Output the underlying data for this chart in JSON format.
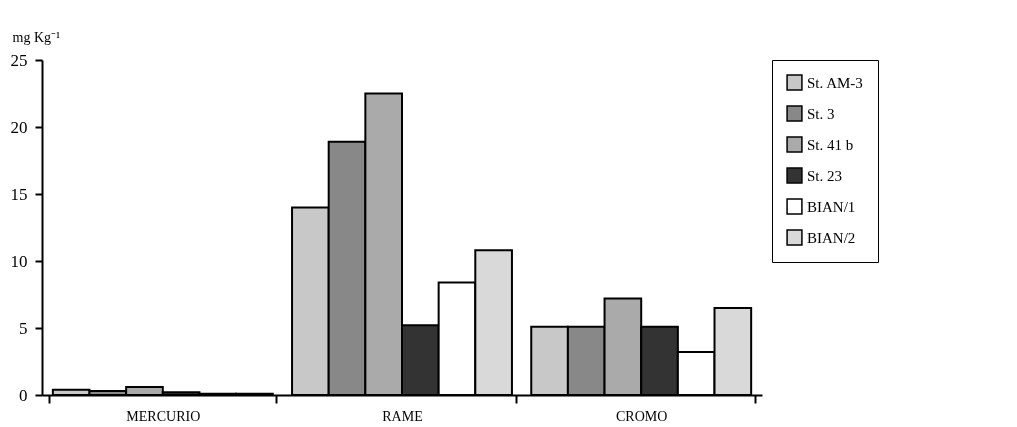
{
  "chart_data": {
    "type": "bar",
    "ylabel": "mg Kg⁻¹",
    "categories": [
      "MERCURIO",
      "RAME",
      "CROMO"
    ],
    "series": [
      {
        "name": "St. AM-3",
        "color": "#c8c8c8",
        "values": [
          0.4,
          14.0,
          5.1
        ]
      },
      {
        "name": "St. 3",
        "color": "#888888",
        "values": [
          0.3,
          18.9,
          5.1
        ]
      },
      {
        "name": "St. 41 b",
        "color": "#aaaaaa",
        "values": [
          0.6,
          22.5,
          7.2
        ]
      },
      {
        "name": "St. 23",
        "color": "#333333",
        "values": [
          0.2,
          5.2,
          5.1
        ]
      },
      {
        "name": "BIAN/1",
        "color": "#ffffff",
        "values": [
          0.1,
          8.4,
          3.2
        ]
      },
      {
        "name": "BIAN/2",
        "color": "#d9d9d9",
        "values": [
          0.1,
          10.8,
          6.5
        ]
      }
    ],
    "ylim": [
      0,
      25
    ],
    "yticks": [
      0,
      5,
      10,
      15,
      20,
      25
    ],
    "grid": false,
    "legend": "right"
  }
}
